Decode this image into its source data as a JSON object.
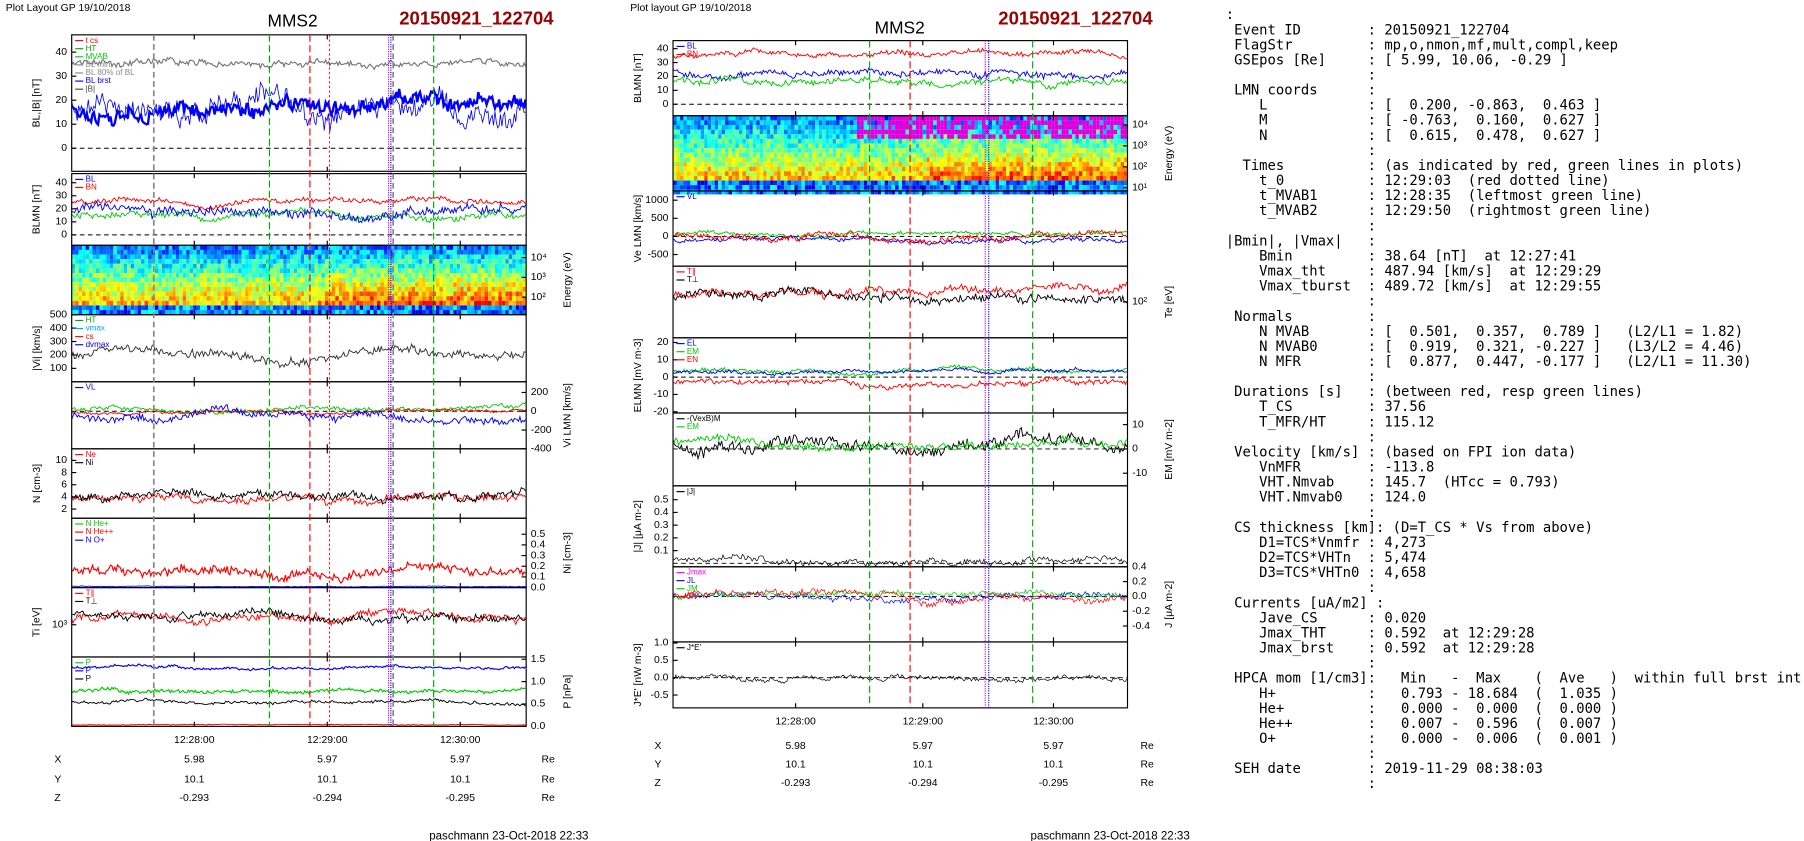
{
  "left_plot": {
    "layout_label": "Plot Layout GP 19/10/2018",
    "spacecraft": "MMS2",
    "event": "20150921_122704",
    "panels": [
      {
        "type": "line",
        "y_label": "BL,|B| [nT]",
        "axis_side": "left",
        "log": false,
        "ylim": [
          -9.6,
          47.2
        ],
        "yticks": [
          0,
          10,
          20,
          30,
          40
        ],
        "legend": [
          {
            "name": "t cs",
            "color": "#ff0000"
          },
          {
            "name": "HT",
            "color": "#00aa00"
          },
          {
            "name": "MVAB",
            "color": "#00cc00"
          },
          {
            "name": "BL min",
            "color": "#888888"
          },
          {
            "name": "BL 80% of BL",
            "color": "#888888"
          },
          {
            "name": "BL brst",
            "color": "#0000ff"
          },
          {
            "name": "|B|",
            "color": "#444444"
          }
        ]
      },
      {
        "type": "line",
        "y_label": "BLMN [nT]",
        "axis_side": "left",
        "log": false,
        "ylim": [
          -8,
          47
        ],
        "yticks": [
          0,
          10,
          20,
          30,
          40
        ],
        "legend": [
          {
            "name": "BL",
            "color": "#0000ff"
          },
          {
            "name": "BN",
            "color": "#ff0000"
          }
        ]
      },
      {
        "type": "spectrogram",
        "y_label": "Energy (eV)",
        "axis_side": "right",
        "log": true,
        "ylim": [
          13,
          42000
        ],
        "yticks": [
          {
            "value": 10000,
            "label": "10⁴"
          },
          {
            "value": 1000,
            "label": "10³"
          },
          {
            "value": 100,
            "label": "10²"
          }
        ],
        "legend": []
      },
      {
        "type": "line",
        "y_label": "|Vi| [km/s]",
        "axis_side": "left",
        "log": false,
        "ylim": [
          0,
          500
        ],
        "yticks": [
          100,
          200,
          300,
          400,
          500
        ],
        "legend": [
          {
            "name": "HT",
            "color": "#00aa00"
          },
          {
            "name": "vmax",
            "color": "#00aaff"
          },
          {
            "name": "cs",
            "color": "#ff0000"
          },
          {
            "name": "dvmax",
            "color": "#0000ff"
          }
        ]
      },
      {
        "type": "line",
        "y_label": "Vi LMN [km/s]",
        "axis_side": "right",
        "log": false,
        "ylim": [
          -400,
          314
        ],
        "yticks": [
          200,
          0,
          -200,
          -400
        ],
        "legend": [
          {
            "name": "VL",
            "color": "#0000ff"
          }
        ]
      },
      {
        "type": "line",
        "y_label": "N [cm-3]",
        "axis_side": "left",
        "log": false,
        "ylim": [
          0.5,
          11.9
        ],
        "yticks": [
          2,
          4,
          6,
          8,
          10
        ],
        "legend": [
          {
            "name": "Ne",
            "color": "#ff0000"
          },
          {
            "name": "Ni",
            "color": "#000000"
          }
        ]
      },
      {
        "type": "line",
        "y_label": "Ni [cm-3]",
        "axis_side": "right",
        "log": false,
        "ylim": [
          0,
          0.65
        ],
        "yticks": [
          {
            "value": 0,
            "label": "0.0"
          },
          0.1,
          0.2,
          0.3,
          0.4,
          0.5
        ],
        "legend": [
          {
            "name": "N He+",
            "color": "#00cc00"
          },
          {
            "name": "N He++",
            "color": "#ff0000"
          },
          {
            "name": "N O+",
            "color": "#0000ff"
          }
        ]
      },
      {
        "type": "line",
        "y_label": "Ti [eV]",
        "axis_side": "left",
        "log": true,
        "ylim": [
          300,
          4000
        ],
        "yticks": [
          {
            "value": 1000,
            "label": "10³"
          }
        ],
        "legend": [
          {
            "name": "T∥",
            "color": "#ff0000"
          },
          {
            "name": "T⊥",
            "color": "#000000"
          }
        ]
      },
      {
        "type": "line",
        "y_label": "P [nPa]",
        "axis_side": "right",
        "log": false,
        "ylim": [
          0,
          1.55
        ],
        "yticks": [
          {
            "value": 0,
            "label": "0.0"
          },
          0.5,
          {
            "value": 1,
            "label": "1.0"
          },
          1.5
        ],
        "legend": [
          {
            "name": "P",
            "color": "#00cc00"
          },
          {
            "name": "P",
            "color": "#0000ff"
          },
          {
            "name": "P",
            "color": "#000000"
          }
        ]
      }
    ],
    "times": [
      "12:28:00",
      "12:29:00",
      "12:30:00"
    ],
    "ephemeris": [
      [
        "X",
        "5.98",
        "5.97",
        "5.97",
        "Re"
      ],
      [
        "Y",
        "10.1",
        "10.1",
        "10.1",
        "Re"
      ],
      [
        "Z",
        "-0.293",
        "-0.294",
        "-0.295",
        "Re"
      ]
    ],
    "footer": "paschmann 23-Oct-2018 22:33"
  },
  "middle_plot": {
    "layout_label": "Plot layout GP 19/10/2018",
    "spacecraft": "MMS2",
    "event": "20150921_122704",
    "panels": [
      {
        "type": "line",
        "y_label": "BLMN [nT]",
        "axis_side": "left",
        "log": false,
        "ylim": [
          -8.3,
          45.8
        ],
        "yticks": [
          0,
          10,
          20,
          30,
          40
        ],
        "legend": [
          {
            "name": "BL",
            "color": "#0000ff"
          },
          {
            "name": "BN",
            "color": "#ff0000"
          }
        ]
      },
      {
        "type": "spectrogram",
        "y_label": "Energy (eV)",
        "axis_side": "right",
        "log": true,
        "ylim": [
          7,
          27500
        ],
        "yticks": [
          {
            "value": 10000,
            "label": "10⁴"
          },
          {
            "value": 1000,
            "label": "10³"
          },
          {
            "value": 100,
            "label": "10²"
          },
          {
            "value": 10,
            "label": "10¹"
          }
        ],
        "legend": []
      },
      {
        "type": "line",
        "y_label": "Ve LMN [km/s]",
        "axis_side": "left",
        "log": false,
        "ylim": [
          -820,
          1255
        ],
        "yticks": [
          -500,
          0,
          500,
          1000
        ],
        "legend": [
          {
            "name": "VL",
            "color": "#0000ff"
          }
        ]
      },
      {
        "type": "line",
        "y_label": "Te [eV]",
        "axis_side": "right",
        "log": true,
        "ylim": [
          20,
          500
        ],
        "yticks": [
          {
            "value": 100,
            "label": "10²"
          }
        ],
        "legend": [
          {
            "name": "T∥",
            "color": "#ff0000"
          },
          {
            "name": "T⊥",
            "color": "#000000"
          }
        ]
      },
      {
        "type": "line",
        "y_label": "ELMN [mV m-3]",
        "axis_side": "left",
        "log": false,
        "ylim": [
          -20.7,
          22.7
        ],
        "yticks": [
          -20,
          -10,
          0,
          10,
          20
        ],
        "legend": [
          {
            "name": "EL",
            "color": "#0000ff"
          },
          {
            "name": "EM",
            "color": "#00cc00"
          },
          {
            "name": "EN",
            "color": "#ff0000"
          }
        ]
      },
      {
        "type": "line",
        "y_label": "EM [mV m-2]",
        "axis_side": "right",
        "log": false,
        "ylim": [
          -15.2,
          14.8
        ],
        "yticks": [
          -10,
          0,
          10
        ],
        "legend": [
          {
            "name": "-(VexB)M",
            "color": "#000000"
          },
          {
            "name": "EM",
            "color": "#00cc00"
          }
        ]
      },
      {
        "type": "line",
        "y_label": "|J| [μA m-2]",
        "axis_side": "left",
        "log": false,
        "ylim": [
          -0.027,
          0.609
        ],
        "yticks": [
          0.1,
          0.2,
          0.3,
          0.4,
          0.5
        ],
        "legend": [
          {
            "name": "|J|",
            "color": "#000000"
          }
        ]
      },
      {
        "type": "line",
        "y_label": "J [μA m-2]",
        "axis_side": "right",
        "log": false,
        "ylim": [
          -0.615,
          0.4
        ],
        "yticks": [
          -0.4,
          -0.2,
          {
            "value": 0,
            "label": "0.0"
          },
          0.2,
          0.4
        ],
        "legend": [
          {
            "name": "Jmax",
            "color": "#ff00ff"
          },
          {
            "name": "JL",
            "color": "#0000ff"
          },
          {
            "name": "JM",
            "color": "#00cc00"
          },
          {
            "name": "JN",
            "color": "#ff0000"
          }
        ]
      },
      {
        "type": "line",
        "y_label": "J*E' [nW m-3]",
        "axis_side": "left",
        "log": false,
        "ylim": [
          -0.87,
          1.03
        ],
        "yticks": [
          -0.5,
          {
            "value": 0,
            "label": "0.0"
          },
          0.5,
          {
            "value": 1,
            "label": "1.0"
          }
        ],
        "legend": [
          {
            "name": "J*E'",
            "color": "#000000"
          }
        ]
      }
    ],
    "times": [
      "12:28:00",
      "12:29:00",
      "12:30:00"
    ],
    "ephemeris": [
      [
        "X",
        "5.98",
        "5.97",
        "5.97",
        "Re"
      ],
      [
        "Y",
        "10.1",
        "10.1",
        "10.1",
        "Re"
      ],
      [
        "Z",
        "-0.293",
        "-0.294",
        "-0.295",
        "Re"
      ]
    ],
    "footer": "paschmann 23-Oct-2018 22:33"
  },
  "summary": {
    "lines": [
      ":",
      " Event ID        : 20150921_122704",
      " FlagStr         : mp,o,nmon,mf,mult,compl,keep",
      " GSEpos [Re]     : [ 5.99, 10.06, -0.29 ]",
      "                 :",
      " LMN coords      :",
      "    L            : [  0.200, -0.863,  0.463 ]",
      "    M            : [ -0.763,  0.160,  0.627 ]",
      "    N            : [  0.615,  0.478,  0.627 ]",
      "                 :",
      "  Times          : (as indicated by red, green lines in plots)",
      "    t_0          : 12:29:03  (red dotted line)",
      "    t_MVAB1      : 12:28:35  (leftmost green line)",
      "    t_MVAB2      : 12:29:50  (rightmost green line)",
      "                 :",
      "|Bmin|, |Vmax|   :",
      "    Bmin         : 38.64 [nT]  at 12:27:41",
      "    Vmax_tht     : 487.94 [km/s]  at 12:29:29",
      "    Vmax_tburst  : 489.72 [km/s]  at 12:29:55",
      "                 :",
      " Normals         :",
      "    N MVAB       : [  0.501,  0.357,  0.789 ]   (L2/L1 = 1.82)",
      "    N MVAB0      : [  0.919,  0.321, -0.227 ]   (L3/L2 = 4.46)",
      "    N MFR        : [  0.877,  0.447, -0.177 ]   (L2/L1 = 11.30)",
      "                 :",
      " Durations [s]   : (between red, resp green lines)",
      "    T_CS         : 37.56",
      "    T_MFR/HT     : 115.12",
      "                 :",
      " Velocity [km/s] : (based on FPI ion data)",
      "    VnMFR        : -113.8",
      "    VHT.Nmvab    : 145.7  (HTcc = 0.793)",
      "    VHT.Nmvab0   : 124.0",
      "                 :",
      " CS thickness [km]: (D=T_CS * Vs from above)",
      "    D1=TCS*Vnmfr : 4,273",
      "    D2=TCS*VHTn  : 5,474",
      "    D3=TCS*VHTn0 : 4,658",
      "                 :",
      " Currents [uA/m2] :",
      "    Jave_CS      : 0.020",
      "    Jmax_THT     : 0.592  at 12:29:28",
      "    Jmax_brst    : 0.592  at 12:29:28",
      "                 :",
      " HPCA mom [1/cm3]:   Min   -  Max    (  Ave   )  within full brst int",
      "    H+           :   0.793 - 18.684  (  1.035 )",
      "    He+          :   0.000 -  0.000  (  0.000 )",
      "    He++         :   0.007 -  0.596  (  0.007 )",
      "    O+           :   0.000 -  0.006  (  0.001 )",
      "                 :",
      " SEH date        : 2019-11-29 08:38:03",
      "                 :"
    ]
  }
}
